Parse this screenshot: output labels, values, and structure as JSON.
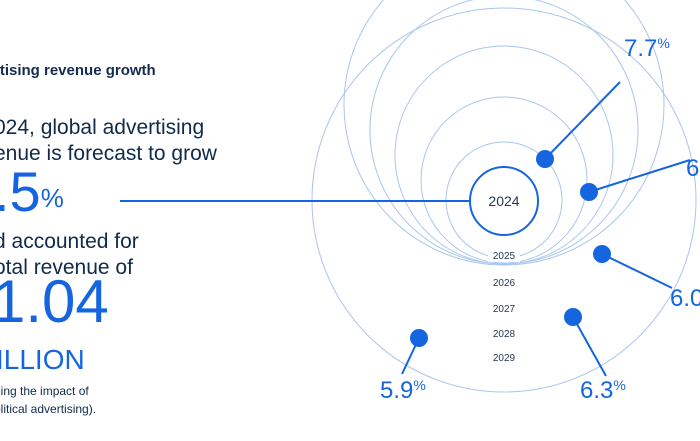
{
  "text": {
    "heading": "rtising revenue growth",
    "line1": "024, global advertising",
    "line2": "enue is forecast to grow",
    "growth": ".5",
    "growth_unit": "%",
    "line3": "d accounted for",
    "line4": "otal revenue of",
    "total": "1.04",
    "total_unit": "ILLION",
    "note1": "ding the impact of",
    "note2": "olitical advertising)."
  },
  "colors": {
    "accent": "#1565e0",
    "ring": "#a9c6ec",
    "text": "#0f2a4a"
  },
  "chart_data": {
    "type": "radial",
    "center_label": "2024",
    "rings": [
      "2025",
      "2026",
      "2027",
      "2028",
      "2029"
    ],
    "points": [
      {
        "year": "2025",
        "value": "7.7",
        "unit": "%"
      },
      {
        "year": "2026",
        "value": "6",
        "unit": ""
      },
      {
        "year": "2027",
        "value": "6.0",
        "unit": ""
      },
      {
        "year": "2028",
        "value": "6.3",
        "unit": "%"
      },
      {
        "year": "2029",
        "value": "5.9",
        "unit": "%"
      }
    ]
  }
}
